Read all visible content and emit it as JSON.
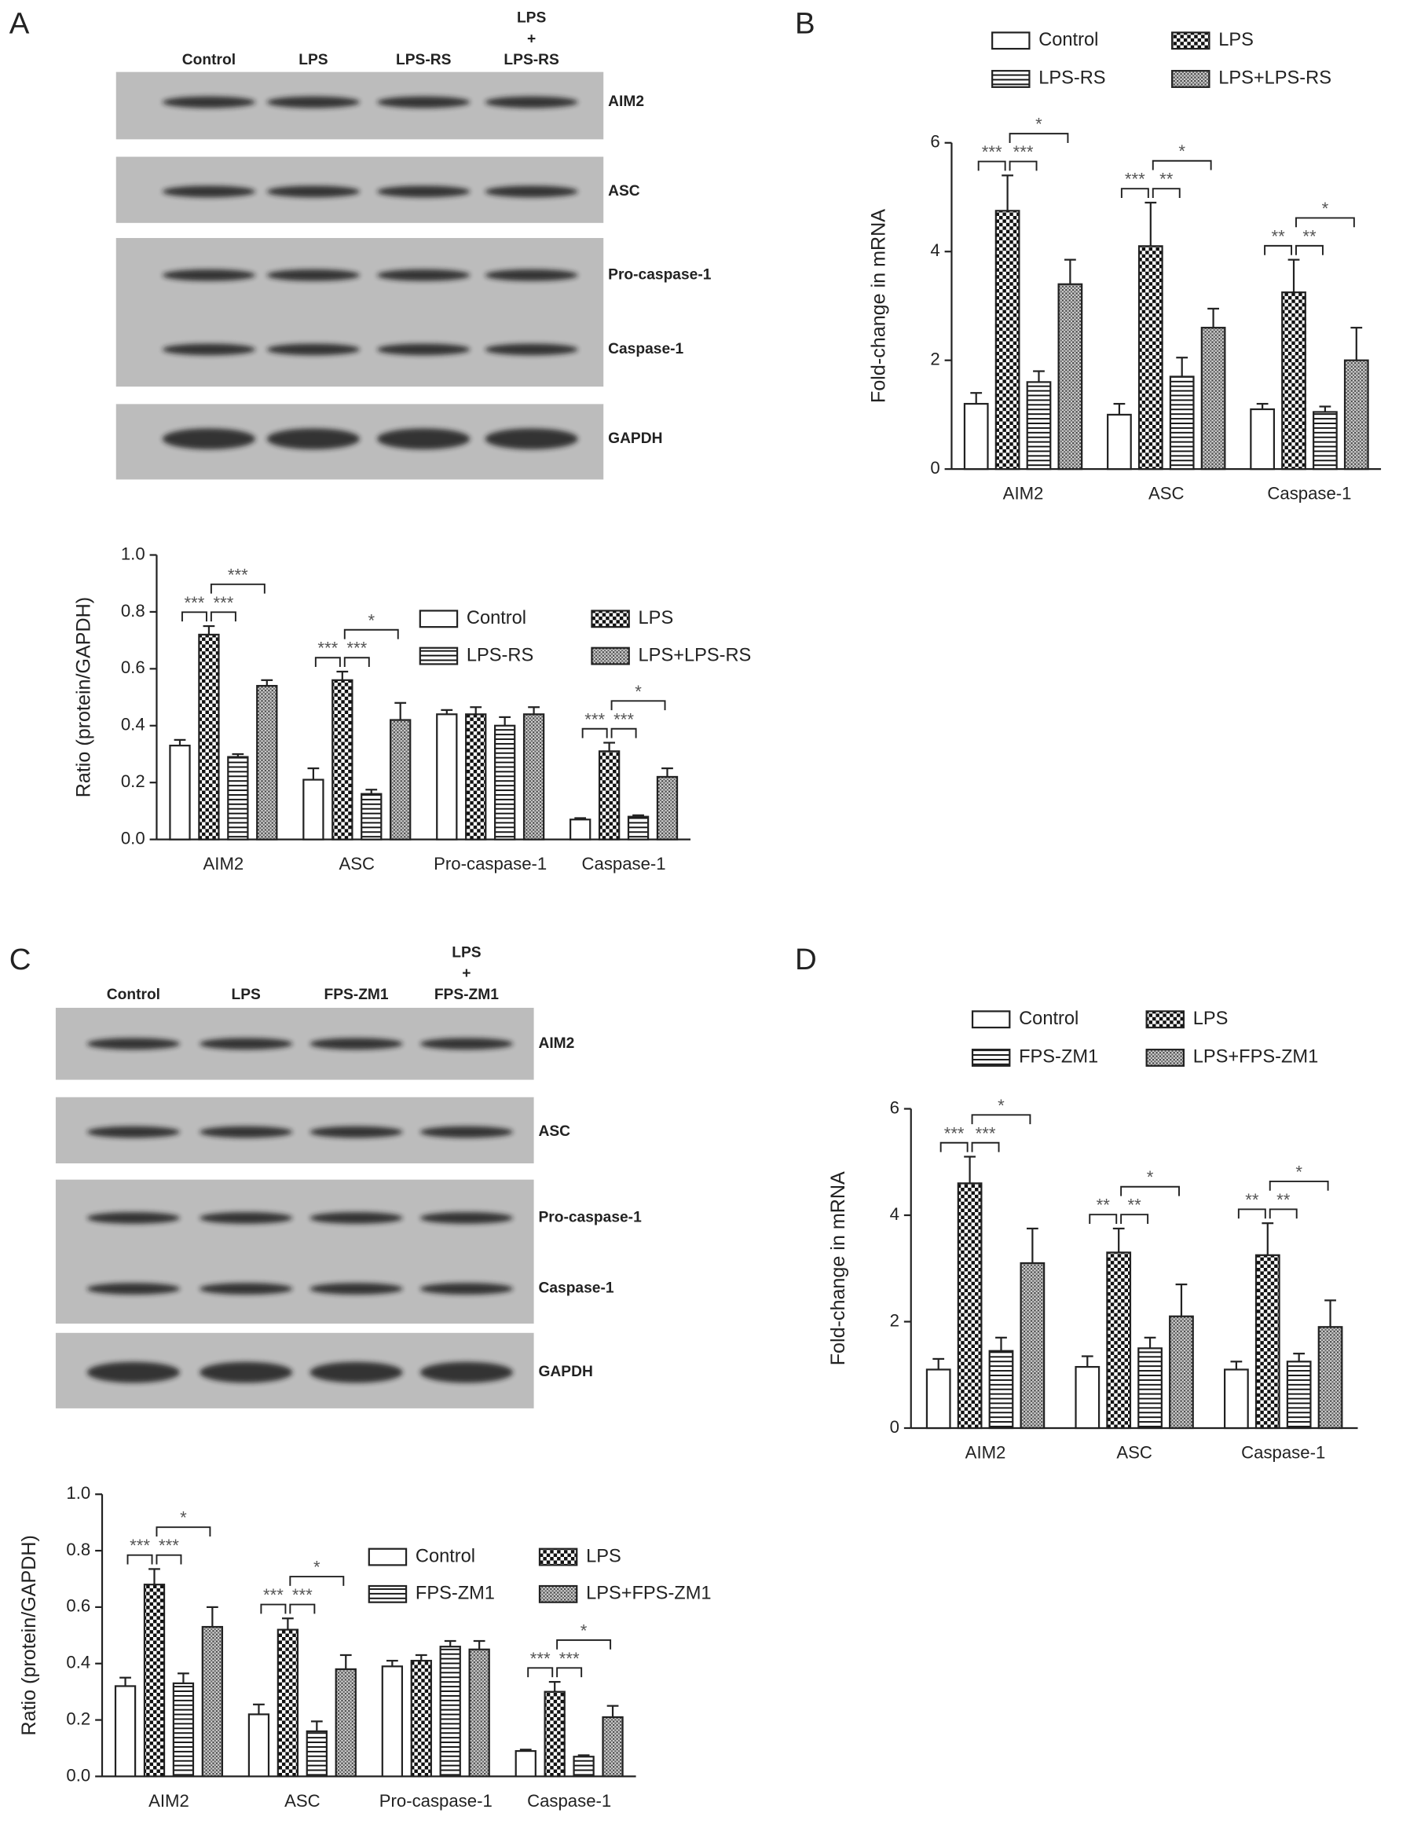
{
  "panel_labels": [
    "A",
    "B",
    "C",
    "D"
  ],
  "blots": [
    {
      "lanes": [
        [
          "Control"
        ],
        [
          "LPS"
        ],
        [
          "LPS-RS"
        ],
        [
          "LPS",
          "+",
          "LPS-RS"
        ]
      ],
      "boxes": [
        [
          "AIM2"
        ],
        [
          "ASC"
        ],
        [
          "Pro-caspase-1",
          "Caspase-1"
        ],
        [
          "GAPDH"
        ]
      ]
    },
    {
      "lanes": [
        [
          "Control"
        ],
        [
          "LPS"
        ],
        [
          "FPS-ZM1"
        ],
        [
          "LPS",
          "+",
          "FPS-ZM1"
        ]
      ],
      "boxes": [
        [
          "AIM2"
        ],
        [
          "ASC"
        ],
        [
          "Pro-caspase-1",
          "Caspase-1"
        ],
        [
          "GAPDH"
        ]
      ]
    }
  ],
  "chart_data": [
    {
      "type": "bar",
      "ylabel": "Ratio (protein/GAPDH)",
      "categories": [
        "AIM2",
        "ASC",
        "Pro-caspase-1",
        "Caspase-1"
      ],
      "series": [
        {
          "name": "Control",
          "pattern": "none",
          "values": [
            0.33,
            0.21,
            0.44,
            0.07
          ],
          "errors": [
            0.02,
            0.04,
            0.015,
            0.005
          ]
        },
        {
          "name": "LPS",
          "pattern": "checker",
          "values": [
            0.72,
            0.56,
            0.44,
            0.31
          ],
          "errors": [
            0.03,
            0.03,
            0.025,
            0.03
          ]
        },
        {
          "name": "LPS-RS",
          "pattern": "hstripe",
          "values": [
            0.29,
            0.16,
            0.4,
            0.08
          ],
          "errors": [
            0.01,
            0.015,
            0.03,
            0.005
          ]
        },
        {
          "name": "LPS+LPS-RS",
          "pattern": "crosshatch",
          "values": [
            0.54,
            0.42,
            0.44,
            0.22
          ],
          "errors": [
            0.02,
            0.06,
            0.025,
            0.03
          ]
        }
      ],
      "ylim": [
        0,
        1
      ],
      "yticks": [
        {
          "value": 0,
          "label": "0.0"
        },
        0.2,
        0.4,
        0.6,
        0.8,
        {
          "value": 1,
          "label": "1.0"
        }
      ],
      "annotations": [
        {
          "text": "***",
          "category": "AIM2",
          "from": "Control",
          "to": "LPS"
        },
        {
          "text": "***",
          "category": "AIM2",
          "from": "LPS",
          "to": "LPS-RS"
        },
        {
          "text": "***",
          "category": "AIM2",
          "from": "LPS",
          "to": "LPS+LPS-RS"
        },
        {
          "text": "***",
          "category": "ASC",
          "from": "Control",
          "to": "LPS"
        },
        {
          "text": "***",
          "category": "ASC",
          "from": "LPS",
          "to": "LPS-RS"
        },
        {
          "text": "*",
          "category": "ASC",
          "from": "LPS",
          "to": "LPS+LPS-RS"
        },
        {
          "text": "***",
          "category": "Caspase-1",
          "from": "Control",
          "to": "LPS"
        },
        {
          "text": "***",
          "category": "Caspase-1",
          "from": "LPS",
          "to": "LPS-RS"
        },
        {
          "text": "*",
          "category": "Caspase-1",
          "from": "LPS",
          "to": "LPS+LPS-RS"
        }
      ]
    },
    {
      "type": "bar",
      "ylabel": "Fold-change in mRNA",
      "categories": [
        "AIM2",
        "ASC",
        "Caspase-1"
      ],
      "series": [
        {
          "name": "Control",
          "pattern": "none",
          "values": [
            1.2,
            1.0,
            1.1
          ],
          "errors": [
            0.2,
            0.2,
            0.1
          ]
        },
        {
          "name": "LPS",
          "pattern": "checker",
          "values": [
            4.75,
            4.1,
            3.25
          ],
          "errors": [
            0.65,
            0.8,
            0.6
          ]
        },
        {
          "name": "LPS-RS",
          "pattern": "hstripe",
          "values": [
            1.6,
            1.7,
            1.05
          ],
          "errors": [
            0.2,
            0.35,
            0.1
          ]
        },
        {
          "name": "LPS+LPS-RS",
          "pattern": "crosshatch",
          "values": [
            3.4,
            2.6,
            2.0
          ],
          "errors": [
            0.45,
            0.35,
            0.6
          ]
        }
      ],
      "ylim": [
        0,
        6
      ],
      "yticks": [
        0,
        2,
        4,
        6
      ],
      "annotations": [
        {
          "text": "***",
          "category": "AIM2",
          "from": "Control",
          "to": "LPS"
        },
        {
          "text": "***",
          "category": "AIM2",
          "from": "LPS",
          "to": "LPS-RS"
        },
        {
          "text": "*",
          "category": "AIM2",
          "from": "LPS",
          "to": "LPS+LPS-RS"
        },
        {
          "text": "***",
          "category": "ASC",
          "from": "Control",
          "to": "LPS"
        },
        {
          "text": "**",
          "category": "ASC",
          "from": "LPS",
          "to": "LPS-RS"
        },
        {
          "text": "*",
          "category": "ASC",
          "from": "LPS",
          "to": "LPS+LPS-RS"
        },
        {
          "text": "**",
          "category": "Caspase-1",
          "from": "Control",
          "to": "LPS"
        },
        {
          "text": "**",
          "category": "Caspase-1",
          "from": "LPS",
          "to": "LPS-RS"
        },
        {
          "text": "*",
          "category": "Caspase-1",
          "from": "LPS",
          "to": "LPS+LPS-RS"
        }
      ]
    },
    {
      "type": "bar",
      "ylabel": "Ratio (protein/GAPDH)",
      "categories": [
        "AIM2",
        "ASC",
        "Pro-caspase-1",
        "Caspase-1"
      ],
      "series": [
        {
          "name": "Control",
          "pattern": "none",
          "values": [
            0.32,
            0.22,
            0.39,
            0.09
          ],
          "errors": [
            0.03,
            0.035,
            0.02,
            0.005
          ]
        },
        {
          "name": "LPS",
          "pattern": "checker",
          "values": [
            0.68,
            0.52,
            0.41,
            0.3
          ],
          "errors": [
            0.055,
            0.04,
            0.02,
            0.035
          ]
        },
        {
          "name": "FPS-ZM1",
          "pattern": "hstripe",
          "values": [
            0.33,
            0.16,
            0.46,
            0.07
          ],
          "errors": [
            0.035,
            0.035,
            0.02,
            0.005
          ]
        },
        {
          "name": "LPS+FPS-ZM1",
          "pattern": "crosshatch",
          "values": [
            0.53,
            0.38,
            0.45,
            0.21
          ],
          "errors": [
            0.07,
            0.05,
            0.03,
            0.04
          ]
        }
      ],
      "ylim": [
        0,
        1
      ],
      "yticks": [
        {
          "value": 0,
          "label": "0.0"
        },
        0.2,
        0.4,
        0.6,
        0.8,
        {
          "value": 1,
          "label": "1.0"
        }
      ],
      "annotations": [
        {
          "text": "***",
          "category": "AIM2",
          "from": "Control",
          "to": "LPS"
        },
        {
          "text": "***",
          "category": "AIM2",
          "from": "LPS",
          "to": "FPS-ZM1"
        },
        {
          "text": "*",
          "category": "AIM2",
          "from": "LPS",
          "to": "LPS+FPS-ZM1"
        },
        {
          "text": "***",
          "category": "ASC",
          "from": "Control",
          "to": "LPS"
        },
        {
          "text": "***",
          "category": "ASC",
          "from": "LPS",
          "to": "FPS-ZM1"
        },
        {
          "text": "*",
          "category": "ASC",
          "from": "LPS",
          "to": "LPS+FPS-ZM1"
        },
        {
          "text": "***",
          "category": "Caspase-1",
          "from": "Control",
          "to": "LPS"
        },
        {
          "text": "***",
          "category": "Caspase-1",
          "from": "LPS",
          "to": "FPS-ZM1"
        },
        {
          "text": "*",
          "category": "Caspase-1",
          "from": "LPS",
          "to": "LPS+FPS-ZM1"
        }
      ]
    },
    {
      "type": "bar",
      "ylabel": "Fold-change in mRNA",
      "categories": [
        "AIM2",
        "ASC",
        "Caspase-1"
      ],
      "series": [
        {
          "name": "Control",
          "pattern": "none",
          "values": [
            1.1,
            1.15,
            1.1
          ],
          "errors": [
            0.2,
            0.2,
            0.15
          ]
        },
        {
          "name": "LPS",
          "pattern": "checker",
          "values": [
            4.6,
            3.3,
            3.25
          ],
          "errors": [
            0.5,
            0.45,
            0.6
          ]
        },
        {
          "name": "FPS-ZM1",
          "pattern": "hstripe",
          "values": [
            1.45,
            1.5,
            1.25
          ],
          "errors": [
            0.25,
            0.2,
            0.15
          ]
        },
        {
          "name": "LPS+FPS-ZM1",
          "pattern": "crosshatch",
          "values": [
            3.1,
            2.1,
            1.9
          ],
          "errors": [
            0.65,
            0.6,
            0.5
          ]
        }
      ],
      "ylim": [
        0,
        6
      ],
      "yticks": [
        0,
        2,
        4,
        6
      ],
      "annotations": [
        {
          "text": "***",
          "category": "AIM2",
          "from": "Control",
          "to": "LPS"
        },
        {
          "text": "***",
          "category": "AIM2",
          "from": "LPS",
          "to": "FPS-ZM1"
        },
        {
          "text": "*",
          "category": "AIM2",
          "from": "LPS",
          "to": "LPS+FPS-ZM1"
        },
        {
          "text": "**",
          "category": "ASC",
          "from": "Control",
          "to": "LPS"
        },
        {
          "text": "**",
          "category": "ASC",
          "from": "LPS",
          "to": "FPS-ZM1"
        },
        {
          "text": "*",
          "category": "ASC",
          "from": "LPS",
          "to": "LPS+FPS-ZM1"
        },
        {
          "text": "**",
          "category": "Caspase-1",
          "from": "Control",
          "to": "LPS"
        },
        {
          "text": "**",
          "category": "Caspase-1",
          "from": "LPS",
          "to": "FPS-ZM1"
        },
        {
          "text": "*",
          "category": "Caspase-1",
          "from": "LPS",
          "to": "LPS+FPS-ZM1"
        }
      ]
    }
  ]
}
